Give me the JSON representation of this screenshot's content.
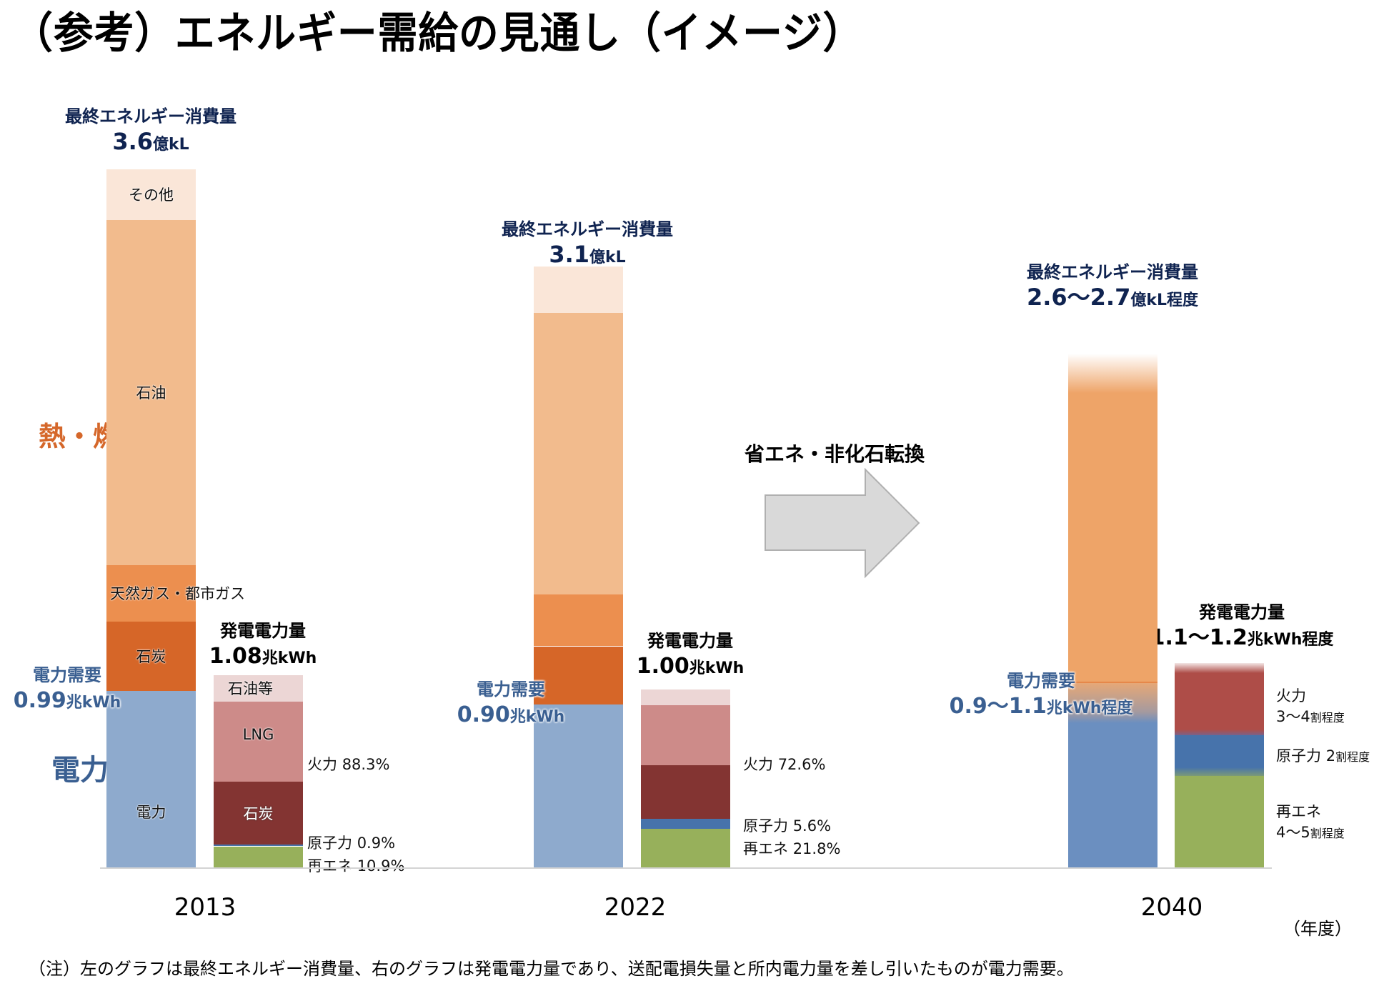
{
  "title": "（参考）エネルギー需給の見通し（イメージ）",
  "side_labels": {
    "heat_fuel": "熱・燃料",
    "power": "電力"
  },
  "arrow": {
    "caption": "省エネ・非化石転換"
  },
  "axis": {
    "unit": "（年度）"
  },
  "note": "（注）左のグラフは最終エネルギー消費量、右のグラフは発電電力量であり、送配電損失量と所内電力量を差し引いたものが電力需要。",
  "colors": {
    "other": "#fae6d8",
    "oil": "#f2bb8d",
    "gas": "#ec8f4f",
    "coal": "#d66628",
    "electricity": "#8eaacd",
    "electricity_2040": "#6b8fc0",
    "oil_2040": "#eea468",
    "gen_oil": "#ecd6d5",
    "gen_lng": "#cd8b89",
    "gen_coal": "#833432",
    "gen_thermal_2040": "#ae4d48",
    "gen_nuclear": "#4773ab",
    "gen_renewable": "#97b05b",
    "title_navy": "#0f2350",
    "demand_blue": "#3a5f91",
    "heat_orange": "#d5672a",
    "arrow_fill": "#d9d9d9",
    "arrow_stroke": "#b0b0b0"
  },
  "chart_data": {
    "type": "bar",
    "title": "（参考）エネルギー需給の見通し（イメージ）",
    "xlabel": "（年度）",
    "categories": [
      "2013",
      "2022",
      "2040"
    ],
    "final_energy_consumption": {
      "caption": "最終エネルギー消費量",
      "unit": "億kL",
      "bars": [
        {
          "year": "2013",
          "total_text": "3.6",
          "unit_text": "億kL",
          "total": 3.6,
          "segments": [
            {
              "key": "electricity",
              "label": "電力",
              "value": 0.91
            },
            {
              "key": "coal",
              "label": "石炭",
              "value": 0.36
            },
            {
              "key": "gas",
              "label": "天然ガス・都市ガス",
              "value": 0.29
            },
            {
              "key": "oil",
              "label": "石油",
              "value": 1.78
            },
            {
              "key": "other",
              "label": "その他",
              "value": 0.26
            }
          ]
        },
        {
          "year": "2022",
          "total_text": "3.1",
          "unit_text": "億kL",
          "total": 3.1,
          "segments": [
            {
              "key": "electricity",
              "label": "",
              "value": 0.84
            },
            {
              "key": "coal",
              "label": "",
              "value": 0.3
            },
            {
              "key": "gas",
              "label": "",
              "value": 0.27
            },
            {
              "key": "oil",
              "label": "",
              "value": 1.45
            },
            {
              "key": "other",
              "label": "",
              "value": 0.24
            }
          ]
        },
        {
          "year": "2040",
          "total_text": "2.6～2.7",
          "unit_text": "億kL程度",
          "total": 2.65,
          "segments": [
            {
              "key": "electricity_2040",
              "label": "",
              "value": 0.95
            },
            {
              "key": "oil_2040",
              "label": "",
              "value": 1.7
            }
          ]
        }
      ]
    },
    "power_demand": {
      "caption": "電力需要",
      "values": [
        {
          "year": "2013",
          "text": "0.99",
          "unit": "兆kWh"
        },
        {
          "year": "2022",
          "text": "0.90",
          "unit": "兆kWh"
        },
        {
          "year": "2040",
          "text": "0.9～1.1",
          "unit": "兆kWh程度"
        }
      ]
    },
    "power_generation": {
      "caption": "発電電力量",
      "unit": "兆kWh",
      "bars": [
        {
          "year": "2013",
          "total_text": "1.08",
          "unit_text": "兆kWh",
          "total": 1.08,
          "segments": [
            {
              "key": "gen_renewable",
              "label": "",
              "pct": 10.9
            },
            {
              "key": "gen_nuclear",
              "label": "",
              "pct": 0.9
            },
            {
              "key": "gen_coal",
              "label": "石炭",
              "pct": 32.9
            },
            {
              "key": "gen_lng",
              "label": "LNG",
              "pct": 41.6
            },
            {
              "key": "gen_oil",
              "label": "石油等",
              "pct": 13.8
            }
          ],
          "annotations": [
            {
              "label": "火力",
              "value": "88.3%"
            },
            {
              "label": "原子力",
              "value": "0.9%"
            },
            {
              "label": "再エネ",
              "value": "10.9%"
            }
          ]
        },
        {
          "year": "2022",
          "total_text": "1.00",
          "unit_text": "兆kWh",
          "total": 1.0,
          "segments": [
            {
              "key": "gen_renewable",
              "label": "",
              "pct": 21.8
            },
            {
              "key": "gen_nuclear",
              "label": "",
              "pct": 5.6
            },
            {
              "key": "gen_coal",
              "label": "",
              "pct": 30.2
            },
            {
              "key": "gen_lng",
              "label": "",
              "pct": 33.6
            },
            {
              "key": "gen_oil",
              "label": "",
              "pct": 8.8
            }
          ],
          "annotations": [
            {
              "label": "火力",
              "value": "72.6%"
            },
            {
              "label": "原子力",
              "value": "5.6%"
            },
            {
              "label": "再エネ",
              "value": "21.8%"
            }
          ]
        },
        {
          "year": "2040",
          "total_text": "1.1～1.2",
          "unit_text": "兆kWh程度",
          "total": 1.15,
          "segments": [
            {
              "key": "gen_renewable",
              "label": "",
              "pct": 45
            },
            {
              "key": "gen_nuclear",
              "label": "",
              "pct": 20
            },
            {
              "key": "gen_thermal_2040",
              "label": "",
              "pct": 35
            }
          ],
          "annotations": [
            {
              "label": "火力",
              "value": "3～4",
              "suffix": "割程度"
            },
            {
              "label": "原子力",
              "value": "2",
              "suffix": "割程度"
            },
            {
              "label": "再エネ",
              "value": "4～5",
              "suffix": "割程度"
            }
          ]
        }
      ]
    }
  }
}
